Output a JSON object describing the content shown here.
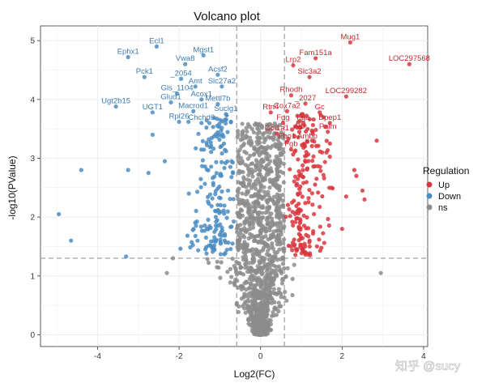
{
  "watermark": "知乎 @sucy",
  "chart_data": {
    "type": "scatter",
    "title": "Volcano plot",
    "xlabel": "Log2(FC)",
    "ylabel": "-log10(PValue)",
    "xlim": [
      -5.4,
      4.1
    ],
    "ylim": [
      -0.2,
      5.25
    ],
    "xticks": [
      -4,
      -2,
      0,
      2,
      4
    ],
    "yticks": [
      0,
      1,
      2,
      3,
      4,
      5
    ],
    "fc_threshold": [
      -0.585,
      0.585
    ],
    "p_threshold": 1.301,
    "grid": true,
    "legend": {
      "title": "Regulation",
      "position": "right",
      "entries": [
        {
          "label": "Up",
          "color": "#d9363e"
        },
        {
          "label": "Down",
          "color": "#4a8cc2"
        },
        {
          "label": "ns",
          "color": "#8c8c8c"
        }
      ]
    },
    "colors": {
      "Up": "#d9363e",
      "Down": "#4a8cc2",
      "ns": "#8c8c8c",
      "threshold": "#aaaaaa"
    },
    "labeled_points": [
      {
        "gene": "Ecl1",
        "x": -2.55,
        "y": 4.9,
        "group": "Down"
      },
      {
        "gene": "Ephx1",
        "x": -3.25,
        "y": 4.72,
        "group": "Down"
      },
      {
        "gene": "Mgst1",
        "x": -1.4,
        "y": 4.75,
        "group": "Down"
      },
      {
        "gene": "Vwa8",
        "x": -1.85,
        "y": 4.6,
        "group": "Down"
      },
      {
        "gene": "Pck1",
        "x": -2.85,
        "y": 4.38,
        "group": "Down"
      },
      {
        "gene": "_2054",
        "x": -1.95,
        "y": 4.35,
        "group": "Down"
      },
      {
        "gene": "Acsf2",
        "x": -1.05,
        "y": 4.42,
        "group": "Down"
      },
      {
        "gene": "Amt",
        "x": -1.6,
        "y": 4.22,
        "group": "Down"
      },
      {
        "gene": "Slc27a2",
        "x": -0.95,
        "y": 4.22,
        "group": "Down"
      },
      {
        "gene": "Gls_1104",
        "x": -2.05,
        "y": 4.1,
        "group": "Down"
      },
      {
        "gene": "Acox1",
        "x": -1.45,
        "y": 4.0,
        "group": "Down"
      },
      {
        "gene": "Glud1",
        "x": -2.2,
        "y": 3.95,
        "group": "Down"
      },
      {
        "gene": "Mettl7b",
        "x": -1.05,
        "y": 3.92,
        "group": "Down"
      },
      {
        "gene": "Ugt2b15",
        "x": -3.55,
        "y": 3.88,
        "group": "Down"
      },
      {
        "gene": "UGT1",
        "x": -2.65,
        "y": 3.78,
        "group": "Down"
      },
      {
        "gene": "Macrod1",
        "x": -1.65,
        "y": 3.8,
        "group": "Down"
      },
      {
        "gene": "Suclg1",
        "x": -0.85,
        "y": 3.75,
        "group": "Down"
      },
      {
        "gene": "Rpl26",
        "x": -2.0,
        "y": 3.62,
        "group": "Down"
      },
      {
        "gene": "Chchd6",
        "x": -1.45,
        "y": 3.6,
        "group": "Down"
      },
      {
        "gene": "Mug1",
        "x": 2.2,
        "y": 4.97,
        "group": "Up"
      },
      {
        "gene": "Fam151a",
        "x": 1.35,
        "y": 4.7,
        "group": "Up"
      },
      {
        "gene": "LOC297568",
        "x": 3.65,
        "y": 4.6,
        "group": "Up"
      },
      {
        "gene": "Lrp2",
        "x": 0.8,
        "y": 4.58,
        "group": "Up"
      },
      {
        "gene": "Slc3a2",
        "x": 1.2,
        "y": 4.38,
        "group": "Up"
      },
      {
        "gene": "Rhodh",
        "x": 0.75,
        "y": 4.07,
        "group": "Up"
      },
      {
        "gene": "LOC299282",
        "x": 2.1,
        "y": 4.05,
        "group": "Up"
      },
      {
        "gene": "_2027",
        "x": 1.1,
        "y": 3.93,
        "group": "Up"
      },
      {
        "gene": "Rtn4",
        "x": 0.25,
        "y": 3.78,
        "group": "Up"
      },
      {
        "gene": "Cox7a2",
        "x": 0.65,
        "y": 3.8,
        "group": "Up"
      },
      {
        "gene": "Gc",
        "x": 1.45,
        "y": 3.78,
        "group": "Up"
      },
      {
        "gene": "Fgg",
        "x": 0.55,
        "y": 3.6,
        "group": "Up"
      },
      {
        "gene": "Fga",
        "x": 1.05,
        "y": 3.6,
        "group": "Up"
      },
      {
        "gene": "Dpep1",
        "x": 1.7,
        "y": 3.6,
        "group": "Up"
      },
      {
        "gene": "Col1a1",
        "x": 0.4,
        "y": 3.42,
        "group": "Up"
      },
      {
        "gene": "Alb",
        "x": 0.95,
        "y": 3.45,
        "group": "Up"
      },
      {
        "gene": "Palm",
        "x": 1.65,
        "y": 3.45,
        "group": "Up"
      },
      {
        "gene": "Fbo1",
        "x": 0.65,
        "y": 3.28,
        "group": "Up"
      },
      {
        "gene": "Ambp",
        "x": 1.15,
        "y": 3.28,
        "group": "Up"
      },
      {
        "gene": "Fgb",
        "x": 0.75,
        "y": 3.15,
        "group": "Up"
      }
    ],
    "extra_points": [
      {
        "x": -4.95,
        "y": 2.05,
        "group": "Down"
      },
      {
        "x": -4.65,
        "y": 1.6,
        "group": "Down"
      },
      {
        "x": -4.4,
        "y": 2.8,
        "group": "Down"
      },
      {
        "x": -3.3,
        "y": 1.33,
        "group": "Down"
      },
      {
        "x": -3.25,
        "y": 2.8,
        "group": "Down"
      },
      {
        "x": -2.75,
        "y": 2.75,
        "group": "Down"
      },
      {
        "x": -2.65,
        "y": 3.4,
        "group": "Down"
      },
      {
        "x": -2.35,
        "y": 2.95,
        "group": "Down"
      },
      {
        "x": 2.3,
        "y": 2.8,
        "group": "Up"
      },
      {
        "x": 2.35,
        "y": 2.7,
        "group": "Up"
      },
      {
        "x": 2.5,
        "y": 2.45,
        "group": "Up"
      },
      {
        "x": 2.55,
        "y": 2.3,
        "group": "Up"
      },
      {
        "x": 2.85,
        "y": 3.3,
        "group": "Up"
      },
      {
        "x": 2.1,
        "y": 2.35,
        "group": "Up"
      },
      {
        "x": 2.0,
        "y": 1.8,
        "group": "Up"
      },
      {
        "x": 2.95,
        "y": 1.05,
        "group": "ns"
      },
      {
        "x": -2.3,
        "y": 1.05,
        "group": "ns"
      },
      {
        "x": -2.15,
        "y": 1.3,
        "group": "ns"
      }
    ],
    "density": {
      "description": "generated background cloud reproducing the point distribution",
      "seed": 7,
      "ns_count": 1300,
      "up_count": 190,
      "down_count": 180
    }
  }
}
